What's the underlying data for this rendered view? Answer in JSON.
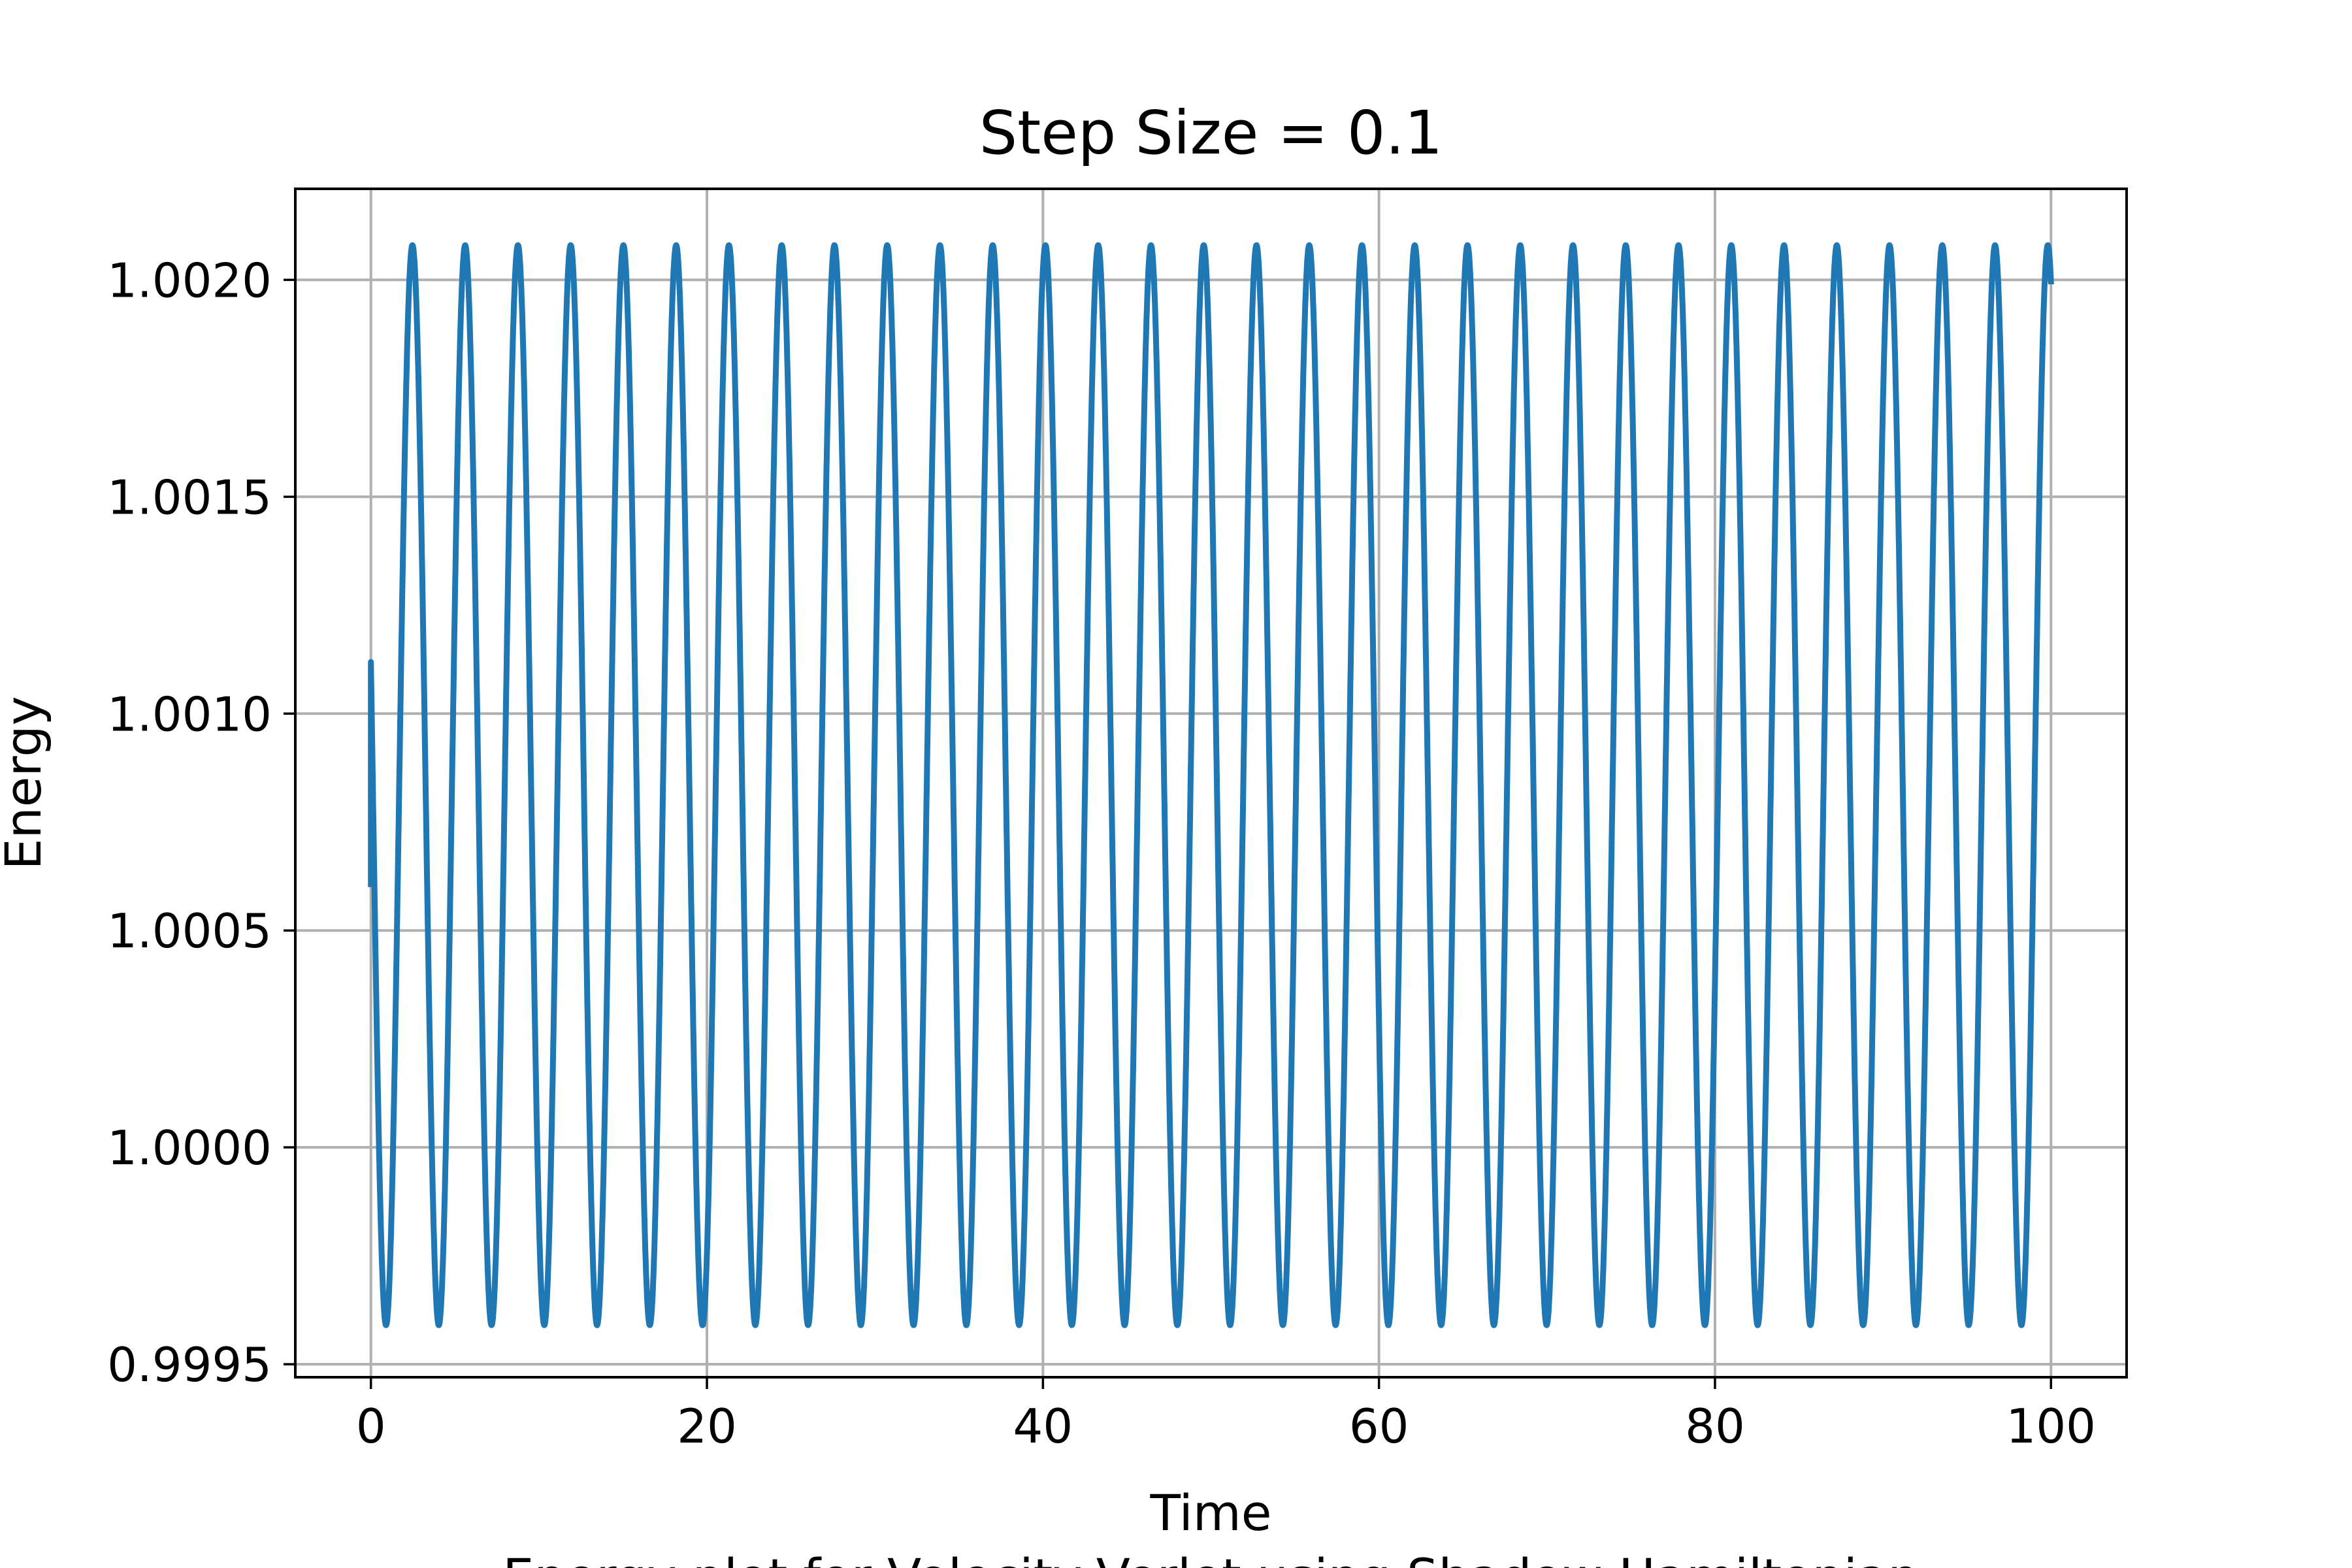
{
  "chart_data": {
    "type": "line",
    "title": "Step Size = 0.1",
    "xlabel": "Time",
    "ylabel": "Energy",
    "caption": "Energy plot for Velocity-Verlet using Shadow Hamiltonian",
    "xlim": [
      -4.5,
      104.5
    ],
    "ylim": [
      0.99947,
      1.00221
    ],
    "grid": true,
    "x_ticks": [
      0,
      20,
      40,
      60,
      80,
      100
    ],
    "x_tick_labels": [
      "0",
      "20",
      "40",
      "60",
      "80",
      "100"
    ],
    "y_ticks": [
      0.9995,
      1.0,
      1.0005,
      1.001,
      1.0015,
      1.002
    ],
    "y_tick_labels": [
      "0.9995",
      "1.0000",
      "1.0005",
      "1.0010",
      "1.0015",
      "1.0020"
    ],
    "series": [
      {
        "color": "#1f77b4",
        "x_start": 0,
        "x_end": 100,
        "min": 0.99959,
        "max": 1.00208,
        "period": 3.14,
        "initial_value": 1.0006,
        "first_min_time": 0.9,
        "final_value": 1.00199
      }
    ]
  }
}
